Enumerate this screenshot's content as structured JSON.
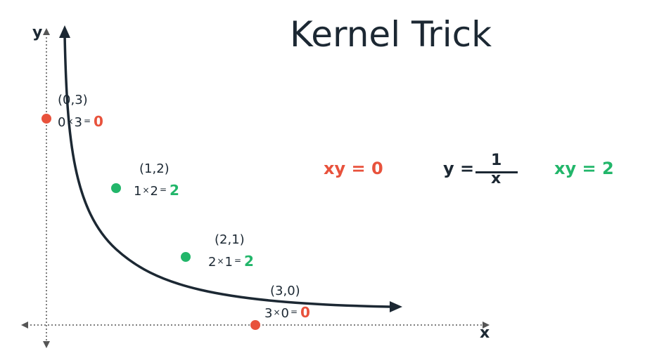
{
  "title": "Kernel Trick",
  "axes": {
    "x_label": "x",
    "y_label": "y"
  },
  "points": [
    {
      "coord": "(0,3)",
      "a": "0",
      "b": "3",
      "result": "0",
      "color": "#e8523c",
      "class": "red"
    },
    {
      "coord": "(1,2)",
      "a": "1",
      "b": "2",
      "result": "2",
      "color": "#22b66a",
      "class": "green"
    },
    {
      "coord": "(2,1)",
      "a": "2",
      "b": "1",
      "result": "2",
      "color": "#22b66a",
      "class": "green"
    },
    {
      "coord": "(3,0)",
      "a": "3",
      "b": "0",
      "result": "0",
      "color": "#e8523c",
      "class": "red"
    }
  ],
  "operators": {
    "times": "×",
    "equals": "="
  },
  "equations": {
    "xy_zero": "xy = 0",
    "xy_two": "xy = 2",
    "y_equals": "y =",
    "numerator": "1",
    "denominator": "x"
  },
  "colors": {
    "red": "#e8523c",
    "green": "#22b66a",
    "dark": "#1c2833",
    "dotted_axis": "#555555"
  }
}
